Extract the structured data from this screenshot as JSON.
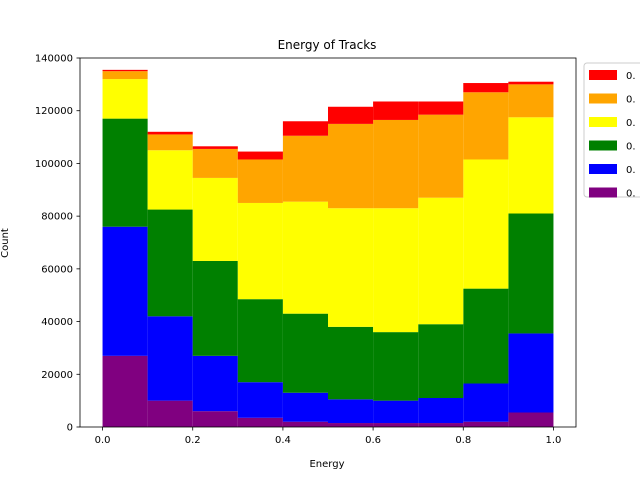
{
  "chart_data": {
    "type": "bar",
    "stacked": true,
    "histogram": true,
    "title": "Energy of Tracks",
    "xlabel": "Energy",
    "ylabel": "Count",
    "bin_edges": [
      0.0,
      0.1,
      0.2,
      0.3,
      0.4,
      0.5,
      0.6,
      0.7,
      0.8,
      0.9,
      1.0
    ],
    "xlim": [
      -0.05,
      1.05
    ],
    "ylim": [
      0,
      140000
    ],
    "x_ticks": [
      0.0,
      0.2,
      0.4,
      0.6,
      0.8,
      1.0
    ],
    "x_tick_labels": [
      "0.0",
      "0.2",
      "0.4",
      "0.6",
      "0.8",
      "1.0"
    ],
    "y_ticks": [
      0,
      20000,
      40000,
      60000,
      80000,
      100000,
      120000,
      140000
    ],
    "y_tick_labels": [
      "0",
      "20000",
      "40000",
      "60000",
      "80000",
      "100000",
      "120000",
      "140000"
    ],
    "grid": false,
    "legend_position": "outside right, top (clipped)",
    "series": [
      {
        "color": "#800080",
        "label_visible": "0.",
        "values": [
          27000,
          10000,
          6000,
          3500,
          2000,
          1500,
          1500,
          1500,
          2000,
          5500
        ]
      },
      {
        "color": "#0000ff",
        "label_visible": "0.",
        "values": [
          49000,
          32000,
          21000,
          13500,
          11000,
          9000,
          8500,
          9500,
          14500,
          30000
        ]
      },
      {
        "color": "#008000",
        "label_visible": "0.",
        "values": [
          41000,
          40500,
          36000,
          31500,
          30000,
          27500,
          26000,
          28000,
          36000,
          45500
        ]
      },
      {
        "color": "#ffff00",
        "label_visible": "0.",
        "values": [
          15000,
          22500,
          31500,
          36500,
          42500,
          45000,
          47000,
          48000,
          49000,
          36500
        ]
      },
      {
        "color": "#ffa500",
        "label_visible": "0.",
        "values": [
          3000,
          6000,
          11000,
          16500,
          25000,
          32000,
          33500,
          31500,
          25500,
          12500
        ]
      },
      {
        "color": "#ff0000",
        "label_visible": "0.",
        "values": [
          500,
          1000,
          1000,
          3000,
          5500,
          6500,
          7000,
          5000,
          3500,
          1000
        ]
      }
    ],
    "legend_order": [
      5,
      4,
      3,
      2,
      1,
      0
    ]
  }
}
